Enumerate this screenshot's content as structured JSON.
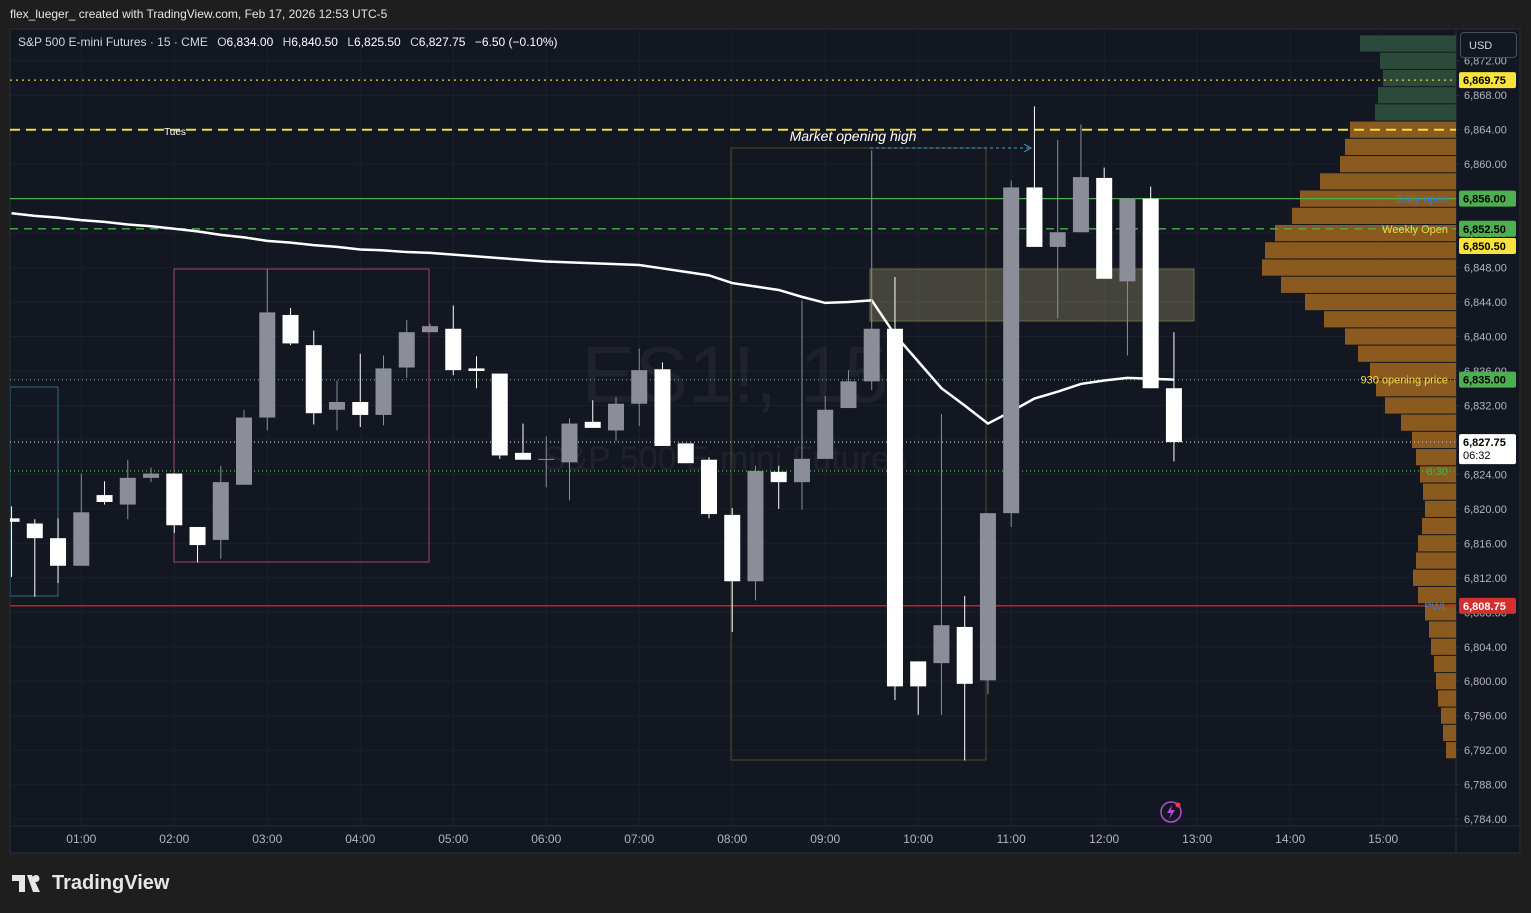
{
  "header": {
    "credit": "flex_lueger_ created with TradingView.com, Feb 17, 2026 12:53 UTC-5",
    "currency": "USD"
  },
  "footer": {
    "brand": "TradingView"
  },
  "chart_data": {
    "type": "candlestick",
    "watermark": [
      "ES1!, 15",
      "S&P 500 E-mini Futures"
    ],
    "legend": {
      "symbol": "S&P 500 E-mini Futures · 15 · CME",
      "items": [
        {
          "key": "O",
          "value": "6,834.00"
        },
        {
          "key": "H",
          "value": "6,840.50"
        },
        {
          "key": "L",
          "value": "6,825.50"
        },
        {
          "key": "C",
          "value": "6,827.75"
        }
      ],
      "change": "−6.50 (−0.10%)"
    },
    "annotations": [
      "Tues",
      "Market opening high"
    ],
    "x": [
      "00:15",
      "00:30",
      "00:45",
      "01:00",
      "01:15",
      "01:30",
      "01:45",
      "02:00",
      "02:15",
      "02:30",
      "02:45",
      "03:00",
      "03:15",
      "03:30",
      "03:45",
      "04:00",
      "04:15",
      "04:30",
      "04:45",
      "05:00",
      "05:15",
      "05:30",
      "05:45",
      "06:00",
      "06:15",
      "06:30",
      "06:45",
      "07:00",
      "07:15",
      "07:30",
      "07:45",
      "08:00",
      "08:15",
      "08:30",
      "08:45",
      "09:00",
      "09:15",
      "09:30",
      "09:45",
      "10:00",
      "10:15",
      "10:30",
      "10:45",
      "11:00",
      "11:15",
      "11:30",
      "11:45",
      "12:00",
      "12:15",
      "12:30",
      "12:45"
    ],
    "open": [
      6818.9,
      6818.3,
      6816.6,
      6813.4,
      6821.6,
      6820.5,
      6823.6,
      6824.1,
      6817.9,
      6816.4,
      6822.8,
      6830.6,
      6842.5,
      6839.0,
      6831.5,
      6832.4,
      6830.9,
      6836.4,
      6840.5,
      6840.9,
      6836.3,
      6835.7,
      6826.5,
      6825.8,
      6825.4,
      6830.1,
      6829.1,
      6832.2,
      6836.2,
      6827.6,
      6825.7,
      6819.3,
      6811.6,
      6824.3,
      6823.1,
      6825.8,
      6831.7,
      6834.8,
      6840.9,
      6802.3,
      6802.1,
      6806.3,
      6800.1,
      6819.5,
      6857.3,
      6850.4,
      6852.1,
      6858.4,
      6846.4,
      6856.0,
      6834.0
    ],
    "high": [
      6820.3,
      6818.8,
      6818.9,
      6824.1,
      6823.2,
      6825.7,
      6824.8,
      6824.1,
      6817.9,
      6825.0,
      6831.5,
      6847.8,
      6843.3,
      6840.7,
      6834.9,
      6838.0,
      6837.8,
      6841.9,
      6841.5,
      6843.6,
      6837.7,
      6835.7,
      6829.9,
      6828.4,
      6830.5,
      6832.6,
      6833.0,
      6838.6,
      6837.0,
      6827.6,
      6826.0,
      6820.1,
      6825.0,
      6825.0,
      6844.2,
      6833.1,
      6836.1,
      6861.6,
      6846.9,
      6802.3,
      6831.0,
      6809.9,
      6819.5,
      6858.1,
      6866.7,
      6862.8,
      6864.6,
      6859.6,
      6856.0,
      6857.4,
      6840.5
    ],
    "low": [
      6812.1,
      6809.8,
      6811.4,
      6813.4,
      6820.5,
      6818.8,
      6823.1,
      6817.2,
      6813.8,
      6814.2,
      6822.8,
      6829.1,
      6839.0,
      6829.8,
      6829.1,
      6829.5,
      6829.7,
      6835.2,
      6840.5,
      6835.5,
      6834.0,
      6825.8,
      6825.7,
      6822.5,
      6821.0,
      6829.4,
      6827.9,
      6829.6,
      6827.3,
      6825.3,
      6818.9,
      6805.7,
      6809.4,
      6820.0,
      6819.9,
      6825.8,
      6831.7,
      6833.8,
      6797.8,
      6796.1,
      6796.1,
      6790.8,
      6798.5,
      6817.9,
      6850.4,
      6842.1,
      6852.1,
      6846.7,
      6837.8,
      6834.0,
      6825.5
    ],
    "close": [
      6818.5,
      6816.6,
      6813.4,
      6819.6,
      6820.8,
      6823.6,
      6824.1,
      6818.1,
      6815.8,
      6823.1,
      6830.6,
      6842.8,
      6839.2,
      6831.1,
      6832.4,
      6830.9,
      6836.3,
      6840.5,
      6841.2,
      6836.1,
      6836.0,
      6826.2,
      6825.7,
      6825.8,
      6829.9,
      6829.4,
      6832.2,
      6836.1,
      6827.3,
      6825.3,
      6819.4,
      6811.6,
      6824.4,
      6823.1,
      6825.8,
      6831.5,
      6834.8,
      6840.9,
      6799.4,
      6799.4,
      6806.5,
      6799.7,
      6819.5,
      6857.3,
      6850.4,
      6852.1,
      6858.5,
      6846.7,
      6856.0,
      6834.0,
      6827.75
    ],
    "up_color": "#8b8e98",
    "down_color": "#ffffff",
    "ema": {
      "color": "#ffffff",
      "values": [
        6854.3,
        6854.0,
        6853.8,
        6853.5,
        6853.3,
        6853.0,
        6852.8,
        6852.5,
        6852.2,
        6851.8,
        6851.5,
        6851.1,
        6850.9,
        6850.6,
        6850.4,
        6850.1,
        6850.0,
        6849.8,
        6849.7,
        6849.5,
        6849.3,
        6849.1,
        6848.9,
        6848.7,
        6848.6,
        6848.5,
        6848.4,
        6848.3,
        6847.9,
        6847.5,
        6847.1,
        6846.2,
        6845.8,
        6845.4,
        6844.6,
        6843.9,
        6844.0,
        6844.2,
        6840.2,
        6837.1,
        6834.0,
        6832.0,
        6829.9,
        6831.3,
        6832.8,
        6833.6,
        6834.5,
        6834.9,
        6835.2,
        6835.1,
        6835.0
      ]
    },
    "volume_profile": {
      "prices": [
        6792,
        6794,
        6796,
        6798,
        6800,
        6802,
        6804,
        6806,
        6808,
        6810,
        6812,
        6814,
        6816,
        6818,
        6820,
        6822,
        6824,
        6826,
        6828,
        6830,
        6832,
        6834,
        6836,
        6838,
        6840,
        6842,
        6844,
        6846,
        6848,
        6850,
        6852,
        6854,
        6856,
        6858,
        6860,
        6862,
        6864,
        6866,
        6868,
        6870,
        6872,
        6874
      ],
      "values": [
        10,
        13,
        15,
        18,
        20,
        22,
        25,
        27,
        31,
        38,
        43,
        40,
        38,
        34,
        31,
        33,
        36,
        40,
        44,
        55,
        71,
        80,
        86,
        98,
        111,
        132,
        151,
        175,
        194,
        191,
        181,
        164,
        156,
        136,
        116,
        111,
        106,
        81,
        78,
        73,
        76,
        96
      ],
      "value_area_high": 6864.5,
      "value_area_color": "#8a5a1e",
      "outside_color": "#2b4a3a"
    },
    "levels": [
      {
        "value": 6869.75,
        "label": "6,869.75",
        "line_color": "#e5d535",
        "dash": "2,4",
        "box_color": "#f7e33c"
      },
      {
        "value": 6864,
        "line_color": "#f0d94a",
        "dash": "10,6"
      },
      {
        "value": 6856,
        "label": "6,856.00",
        "name": "Daily open",
        "line_color": "#4caf50",
        "box_color": "#4caf50",
        "name_color": "#2f7de1"
      },
      {
        "value": 6852.5,
        "label": "6,852.50",
        "name": "Weekly Open",
        "line_color": "#4caf50",
        "dash": "8,6",
        "box_color": "#4caf50",
        "name_color": "#f0d94a"
      },
      {
        "value": 6850.5,
        "label": "6,850.50",
        "box_color": "#f7e33c"
      },
      {
        "value": 6835,
        "label": "6,835.00",
        "name": "930 opening price",
        "line_color": "#4caf50",
        "dash": "1,3",
        "box_color": "#4caf50",
        "name_color": "#f0d94a"
      },
      {
        "value": 6827.75,
        "label": "6,827.75",
        "timer": "06:32",
        "line_color": "#b2b5be",
        "dash": "1,3",
        "box_color": "#ffffff"
      },
      {
        "value": 6824.4,
        "name": "8:30",
        "line_color": "#4caf50",
        "dash": "1,3",
        "name_color": "#4caf50"
      },
      {
        "value": 6808.75,
        "label": "6,808.75",
        "name": "PWL",
        "line_color": "#c62828",
        "box_color": "#d32f2f",
        "label_color": "#ffffff",
        "name_color": "#2f7de1"
      }
    ],
    "xlim": [
      "00:14",
      "15:47"
    ],
    "xticks": [
      "01:00",
      "02:00",
      "03:00",
      "04:00",
      "05:00",
      "06:00",
      "07:00",
      "08:00",
      "09:00",
      "10:00",
      "11:00",
      "12:00",
      "13:00",
      "14:00",
      "15:00"
    ],
    "ylim": [
      6783.2,
      6875.8
    ],
    "yticks": [
      {
        "value": 6784,
        "label": "6,784.00"
      },
      {
        "value": 6788,
        "label": "6,788.00"
      },
      {
        "value": 6792,
        "label": "6,792.00"
      },
      {
        "value": 6796,
        "label": "6,796.00"
      },
      {
        "value": 6800,
        "label": "6,800.00"
      },
      {
        "value": 6804,
        "label": "6,804.00"
      },
      {
        "value": 6808,
        "label": "6,808.00"
      },
      {
        "value": 6812,
        "label": "6,812.00"
      },
      {
        "value": 6816,
        "label": "6,816.00"
      },
      {
        "value": 6820,
        "label": "6,820.00"
      },
      {
        "value": 6824,
        "label": "6,824.00"
      },
      {
        "value": 6828,
        "label": "6,828.00"
      },
      {
        "value": 6832,
        "label": "6,832.00"
      },
      {
        "value": 6836,
        "label": "6,836.00"
      },
      {
        "value": 6840,
        "label": "6,840.00"
      },
      {
        "value": 6844,
        "label": "6,844.00"
      },
      {
        "value": 6848,
        "label": "6,848.00"
      },
      {
        "value": 6852,
        "label": "6,852.00"
      },
      {
        "value": 6856,
        "label": "6,856.00"
      },
      {
        "value": 6860,
        "label": "6,860.00"
      },
      {
        "value": 6864,
        "label": "6,864.00"
      },
      {
        "value": 6868,
        "label": "6,868.00"
      },
      {
        "value": 6872,
        "label": "6,872.00"
      }
    ],
    "grid": true
  }
}
